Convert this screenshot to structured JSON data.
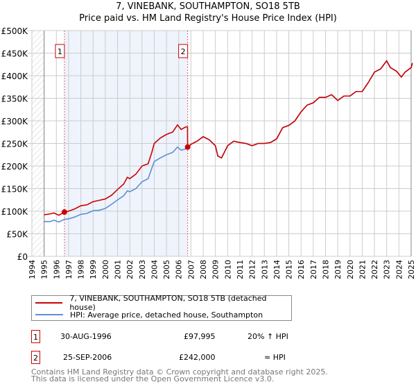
{
  "chart_data": {
    "type": "line",
    "title": "7, VINEBANK, SOUTHAMPTON, SO18 5TB",
    "subtitle": "Price paid vs. HM Land Registry's House Price Index (HPI)",
    "xlim": [
      1994,
      2025
    ],
    "ylim": [
      0,
      500000
    ],
    "x_ticks": [
      "1994",
      "1995",
      "1996",
      "1997",
      "1998",
      "1999",
      "2000",
      "2001",
      "2002",
      "2003",
      "2004",
      "2005",
      "2006",
      "2007",
      "2008",
      "2009",
      "2010",
      "2011",
      "2012",
      "2013",
      "2014",
      "2015",
      "2016",
      "2017",
      "2018",
      "2019",
      "2020",
      "2021",
      "2022",
      "2023",
      "2024",
      "2025"
    ],
    "y_ticks": [
      "£0",
      "£50K",
      "£100K",
      "£150K",
      "£200K",
      "£250K",
      "£300K",
      "£350K",
      "£400K",
      "£450K",
      "£500K"
    ],
    "grid": true,
    "colors": {
      "property": "#cc0000",
      "hpi": "#5b8fd6",
      "shade": "#eef3fc"
    },
    "shaded_range": [
      1996.66,
      2006.73
    ],
    "hatched_range": [
      1994,
      1995
    ],
    "series": [
      {
        "name": "7, VINEBANK, SOUTHAMPTON, SO18 5TB (detached house)",
        "points": [
          [
            1995,
            92000
          ],
          [
            1995.5,
            94000
          ],
          [
            1995.8,
            96000
          ],
          [
            1996.2,
            91000
          ],
          [
            1996.66,
            97995
          ],
          [
            1997,
            100000
          ],
          [
            1997.5,
            105000
          ],
          [
            1998,
            112000
          ],
          [
            1998.5,
            114000
          ],
          [
            1999,
            121000
          ],
          [
            1999.5,
            124000
          ],
          [
            2000,
            127000
          ],
          [
            2000.5,
            135000
          ],
          [
            2001,
            148000
          ],
          [
            2001.5,
            160000
          ],
          [
            2001.8,
            175000
          ],
          [
            2002,
            172000
          ],
          [
            2002.5,
            182000
          ],
          [
            2003,
            200000
          ],
          [
            2003.5,
            205000
          ],
          [
            2003.8,
            230000
          ],
          [
            2004,
            250000
          ],
          [
            2004.5,
            262000
          ],
          [
            2005,
            270000
          ],
          [
            2005.5,
            275000
          ],
          [
            2005.9,
            291000
          ],
          [
            2006.2,
            281000
          ],
          [
            2006.6,
            287000
          ],
          [
            2006.72,
            286000
          ],
          [
            2006.73,
            242000
          ],
          [
            2007,
            248000
          ],
          [
            2007.5,
            255000
          ],
          [
            2008,
            265000
          ],
          [
            2008.5,
            258000
          ],
          [
            2009,
            245000
          ],
          [
            2009.2,
            222000
          ],
          [
            2009.5,
            218000
          ],
          [
            2010,
            245000
          ],
          [
            2010.5,
            255000
          ],
          [
            2011,
            252000
          ],
          [
            2011.5,
            250000
          ],
          [
            2012,
            245000
          ],
          [
            2012.5,
            250000
          ],
          [
            2013,
            250000
          ],
          [
            2013.5,
            252000
          ],
          [
            2014,
            260000
          ],
          [
            2014.5,
            285000
          ],
          [
            2015,
            290000
          ],
          [
            2015.5,
            300000
          ],
          [
            2016,
            320000
          ],
          [
            2016.5,
            335000
          ],
          [
            2017,
            340000
          ],
          [
            2017.5,
            352000
          ],
          [
            2018,
            352000
          ],
          [
            2018.5,
            358000
          ],
          [
            2019,
            345000
          ],
          [
            2019.5,
            355000
          ],
          [
            2020,
            355000
          ],
          [
            2020.5,
            365000
          ],
          [
            2021,
            365000
          ],
          [
            2021.5,
            385000
          ],
          [
            2022,
            408000
          ],
          [
            2022.5,
            415000
          ],
          [
            2023,
            433000
          ],
          [
            2023.3,
            418000
          ],
          [
            2023.8,
            410000
          ],
          [
            2024.2,
            397000
          ],
          [
            2024.5,
            408000
          ],
          [
            2025,
            418000
          ],
          [
            2025.1,
            428000
          ]
        ]
      },
      {
        "name": "HPI: Average price, detached house, Southampton",
        "points": [
          [
            1995,
            77000
          ],
          [
            1995.5,
            77000
          ],
          [
            1995.8,
            80000
          ],
          [
            1996.2,
            76000
          ],
          [
            1996.66,
            82000
          ],
          [
            1997,
            83000
          ],
          [
            1997.5,
            87000
          ],
          [
            1998,
            93000
          ],
          [
            1998.5,
            95000
          ],
          [
            1999,
            101000
          ],
          [
            1999.5,
            102000
          ],
          [
            2000,
            106000
          ],
          [
            2000.5,
            115000
          ],
          [
            2001,
            125000
          ],
          [
            2001.5,
            134000
          ],
          [
            2001.8,
            145000
          ],
          [
            2002,
            143000
          ],
          [
            2002.5,
            150000
          ],
          [
            2003,
            165000
          ],
          [
            2003.5,
            172000
          ],
          [
            2003.8,
            195000
          ],
          [
            2004,
            210000
          ],
          [
            2004.5,
            218000
          ],
          [
            2005,
            225000
          ],
          [
            2005.5,
            230000
          ],
          [
            2005.9,
            242000
          ],
          [
            2006.2,
            235000
          ],
          [
            2006.6,
            238000
          ],
          [
            2006.73,
            240000
          ],
          [
            2007,
            248000
          ],
          [
            2007.5,
            255000
          ],
          [
            2008,
            265000
          ],
          [
            2008.5,
            258000
          ],
          [
            2009,
            245000
          ],
          [
            2009.2,
            222000
          ],
          [
            2009.5,
            218000
          ],
          [
            2010,
            245000
          ],
          [
            2010.5,
            255000
          ],
          [
            2011,
            252000
          ],
          [
            2011.5,
            250000
          ],
          [
            2012,
            245000
          ],
          [
            2012.5,
            250000
          ],
          [
            2013,
            250000
          ],
          [
            2013.5,
            252000
          ],
          [
            2014,
            260000
          ],
          [
            2014.5,
            285000
          ],
          [
            2015,
            290000
          ],
          [
            2015.5,
            300000
          ],
          [
            2016,
            320000
          ],
          [
            2016.5,
            335000
          ],
          [
            2017,
            340000
          ],
          [
            2017.5,
            352000
          ],
          [
            2018,
            352000
          ],
          [
            2018.5,
            358000
          ],
          [
            2019,
            345000
          ],
          [
            2019.5,
            355000
          ],
          [
            2020,
            355000
          ],
          [
            2020.5,
            365000
          ],
          [
            2021,
            365000
          ],
          [
            2021.5,
            385000
          ],
          [
            2022,
            408000
          ],
          [
            2022.5,
            415000
          ],
          [
            2023,
            433000
          ],
          [
            2023.3,
            418000
          ],
          [
            2023.8,
            410000
          ],
          [
            2024.2,
            397000
          ],
          [
            2024.5,
            408000
          ],
          [
            2025,
            418000
          ],
          [
            2025.1,
            426000
          ]
        ]
      }
    ],
    "sales": [
      {
        "label": "1",
        "x": 1996.66,
        "y": 97995
      },
      {
        "label": "2",
        "x": 2006.73,
        "y": 242000
      }
    ]
  },
  "legend": {
    "property": "7, VINEBANK, SOUTHAMPTON, SO18 5TB (detached house)",
    "hpi": "HPI: Average price, detached house, Southampton"
  },
  "transactions": [
    {
      "num": "1",
      "date": "30-AUG-1996",
      "price": "£97,995",
      "hpi": "20% ↑ HPI"
    },
    {
      "num": "2",
      "date": "25-SEP-2006",
      "price": "£242,000",
      "hpi": "≈ HPI"
    }
  ],
  "footer": {
    "line1": "Contains HM Land Registry data © Crown copyright and database right 2025.",
    "line2": "This data is licensed under the Open Government Licence v3.0."
  }
}
